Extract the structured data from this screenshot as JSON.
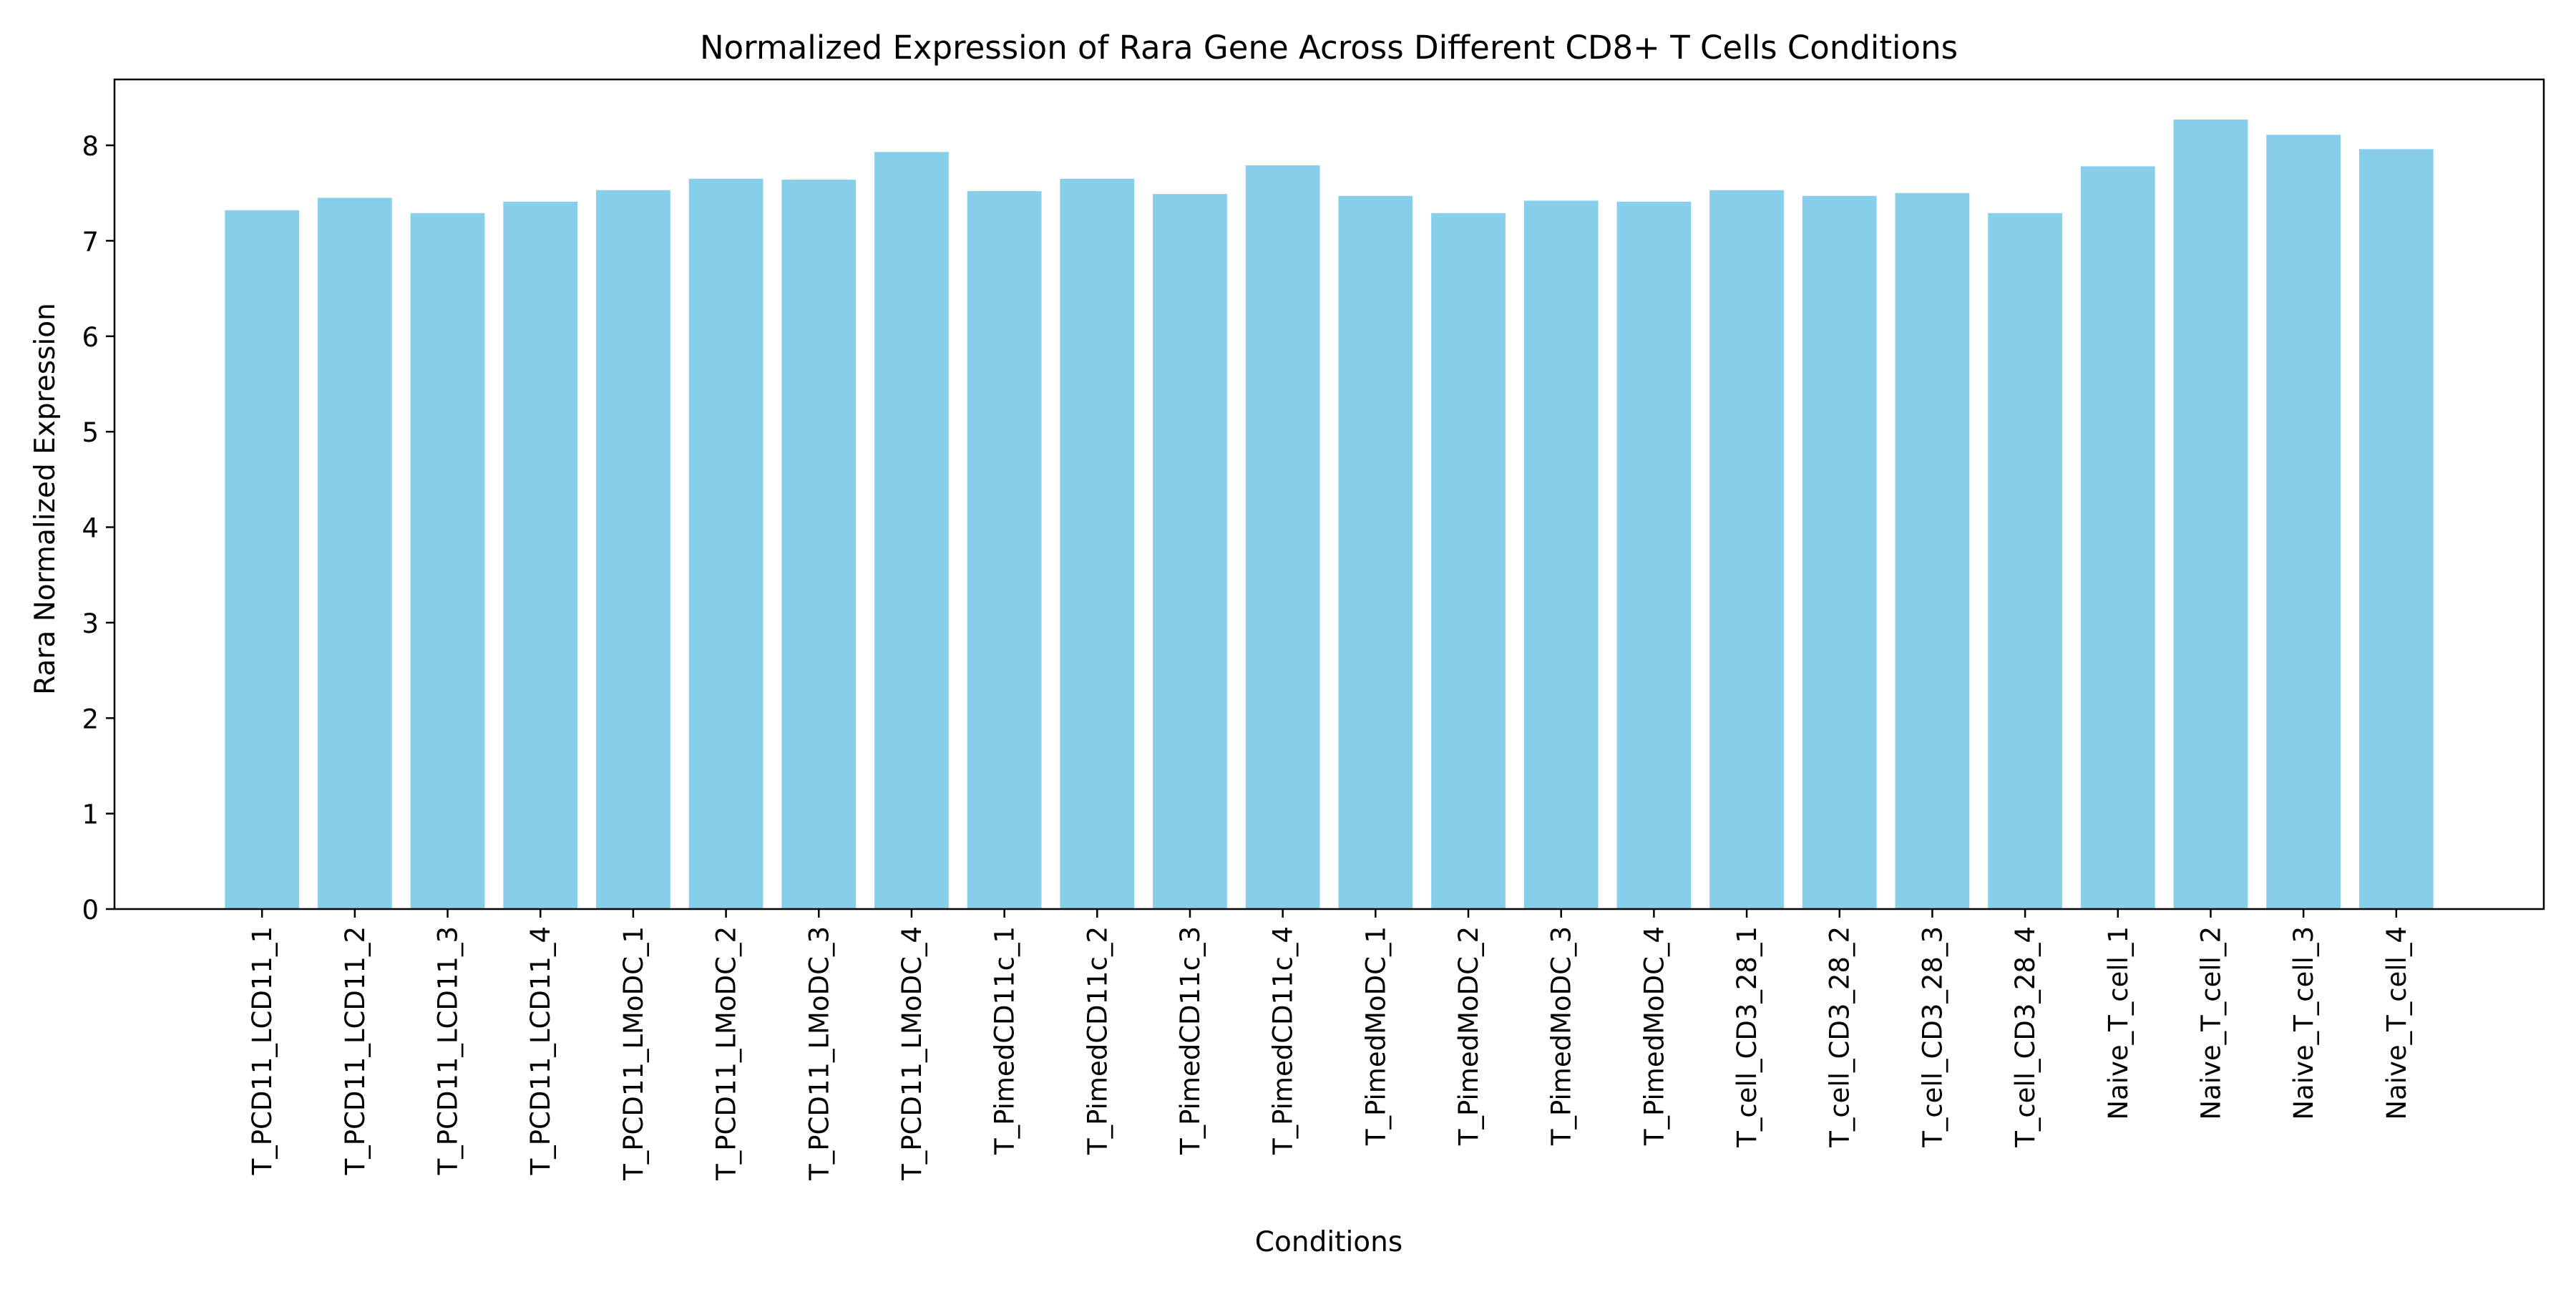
{
  "chart_data": {
    "type": "bar",
    "title": "Normalized Expression of Rara Gene Across Different CD8+ T Cells Conditions",
    "xlabel": "Conditions",
    "ylabel": "Rara Normalized Expression",
    "ylim": [
      0,
      8.69
    ],
    "yticks": [
      0,
      1,
      2,
      3,
      4,
      5,
      6,
      7,
      8
    ],
    "grid": false,
    "legend": "none",
    "bar_color": "#87CEEB",
    "categories": [
      "T_PCD11_LCD11_1",
      "T_PCD11_LCD11_2",
      "T_PCD11_LCD11_3",
      "T_PCD11_LCD11_4",
      "T_PCD11_LMoDC_1",
      "T_PCD11_LMoDC_2",
      "T_PCD11_LMoDC_3",
      "T_PCD11_LMoDC_4",
      "T_PimedCD11c_1",
      "T_PimedCD11c_2",
      "T_PimedCD11c_3",
      "T_PimedCD11c_4",
      "T_PimedMoDC_1",
      "T_PimedMoDC_2",
      "T_PimedMoDC_3",
      "T_PimedMoDC_4",
      "T_cell_CD3_28_1",
      "T_cell_CD3_28_2",
      "T_cell_CD3_28_3",
      "T_cell_CD3_28_4",
      "Naive_T_cell_1",
      "Naive_T_cell_2",
      "Naive_T_cell_3",
      "Naive_T_cell_4"
    ],
    "values": [
      7.32,
      7.45,
      7.29,
      7.41,
      7.53,
      7.65,
      7.64,
      7.93,
      7.52,
      7.65,
      7.49,
      7.79,
      7.47,
      7.29,
      7.42,
      7.41,
      7.53,
      7.47,
      7.5,
      7.29,
      7.78,
      8.27,
      8.11,
      7.96
    ]
  }
}
